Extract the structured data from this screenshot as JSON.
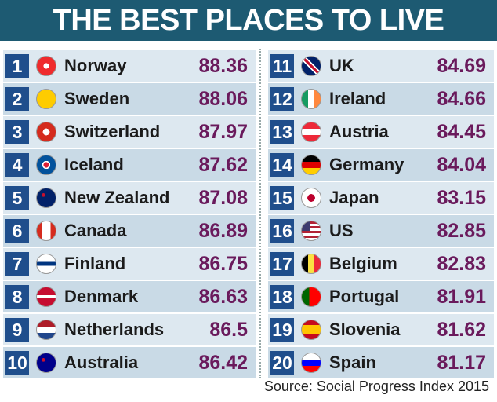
{
  "title": "THE BEST PLACES TO LIVE",
  "table": {
    "rows": [
      [
        1,
        "Norway",
        88.36
      ],
      [
        2,
        "Sweden",
        88.06
      ],
      [
        3,
        "Switzerland",
        87.97
      ],
      [
        4,
        "Iceland",
        87.62
      ],
      [
        5,
        "New Zealand",
        87.08
      ],
      [
        6,
        "Canada",
        86.89
      ],
      [
        7,
        "Finland",
        86.75
      ],
      [
        8,
        "Denmark",
        86.63
      ],
      [
        9,
        "Netherlands",
        86.5
      ],
      [
        10,
        "Australia",
        86.42
      ],
      [
        11,
        "UK",
        84.69
      ],
      [
        12,
        "Ireland",
        84.66
      ],
      [
        13,
        "Austria",
        84.45
      ],
      [
        14,
        "Germany",
        84.04
      ],
      [
        15,
        "Japan",
        83.15
      ],
      [
        16,
        "US",
        82.85
      ],
      [
        17,
        "Belgium",
        82.83
      ],
      [
        18,
        "Portugal",
        81.91
      ],
      [
        19,
        "Slovenia",
        81.62
      ],
      [
        20,
        "Spain",
        81.17
      ]
    ]
  },
  "source": "Source: Social Progress Index 2015"
}
